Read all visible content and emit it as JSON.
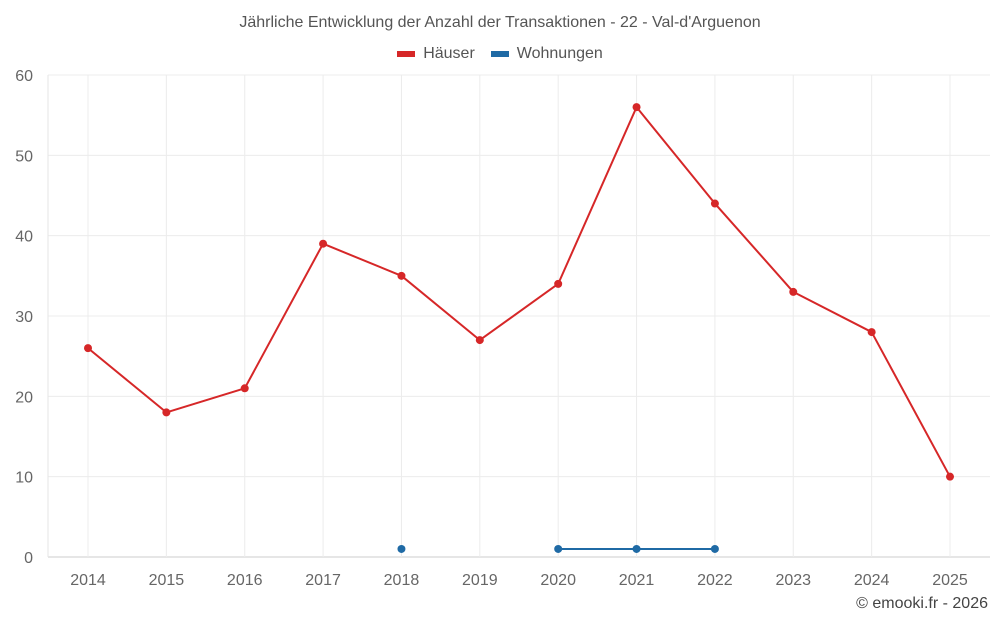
{
  "chart_data": {
    "type": "line",
    "title": "Jährliche Entwicklung der Anzahl der Transaktionen - 22 - Val-d'Arguenon",
    "xlabel": "",
    "ylabel": "",
    "ylim": [
      0,
      60
    ],
    "yticks": [
      0,
      10,
      20,
      30,
      40,
      50,
      60
    ],
    "categories": [
      "2014",
      "2015",
      "2016",
      "2017",
      "2018",
      "2019",
      "2020",
      "2021",
      "2022",
      "2023",
      "2024",
      "2025"
    ],
    "grid": true,
    "legend_position": "top-center",
    "series": [
      {
        "name": "Häuser",
        "color": "#d62728",
        "values": [
          26,
          18,
          21,
          39,
          35,
          27,
          34,
          56,
          44,
          33,
          28,
          10
        ]
      },
      {
        "name": "Wohnungen",
        "color": "#1f6aa5",
        "values": [
          null,
          null,
          null,
          null,
          1,
          null,
          1,
          1,
          1,
          null,
          null,
          null
        ]
      }
    ]
  },
  "credit": "© emooki.fr - 2026"
}
